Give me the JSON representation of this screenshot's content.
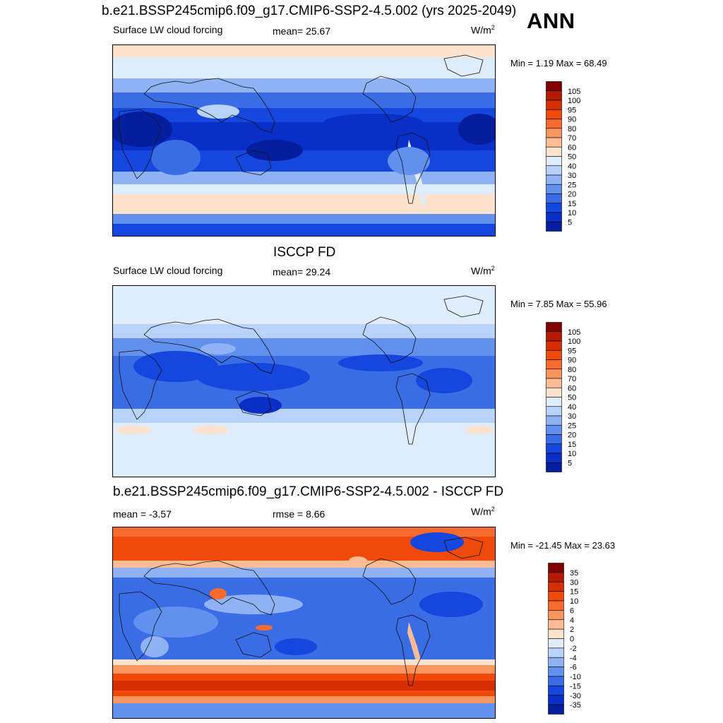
{
  "season": "ANN",
  "units_main": "W/m",
  "units_sup": "2",
  "panels": [
    {
      "title": "b.e21.BSSP245cmip6.f09_g17.CMIP6-SSP2-4.5.002 (yrs 2025-2049)",
      "left_text": "Surface LW cloud forcing",
      "center_text": "mean=  25.67",
      "min_max": "Min =   1.19 Max =  68.49",
      "levels": [
        "105",
        "100",
        "95",
        "90",
        "80",
        "70",
        "60",
        "50",
        "40",
        "30",
        "25",
        "20",
        "15",
        "10",
        "5"
      ],
      "colors": [
        "#800000",
        "#b31a00",
        "#d52e00",
        "#f04a0a",
        "#f86a2e",
        "#fb9560",
        "#fdbc95",
        "#fde3cd",
        "#dfecfc",
        "#b8d2fa",
        "#8fb2f4",
        "#6190ee",
        "#3a6ce6",
        "#1546dd",
        "#0a2fc7",
        "#041e9e"
      ]
    },
    {
      "title": "ISCCP FD",
      "left_text": "Surface LW cloud forcing",
      "center_text": "mean=  29.24",
      "min_max": "Min =   7.85 Max =  55.96",
      "levels": [
        "105",
        "100",
        "95",
        "90",
        "80",
        "70",
        "60",
        "50",
        "40",
        "30",
        "25",
        "20",
        "15",
        "10",
        "5"
      ],
      "colors": [
        "#800000",
        "#b31a00",
        "#d52e00",
        "#f04a0a",
        "#f86a2e",
        "#fb9560",
        "#fdbc95",
        "#fde3cd",
        "#dfecfc",
        "#b8d2fa",
        "#8fb2f4",
        "#6190ee",
        "#3a6ce6",
        "#1546dd",
        "#0a2fc7",
        "#041e9e"
      ]
    },
    {
      "title": "b.e21.BSSP245cmip6.f09_g17.CMIP6-SSP2-4.5.002 - ISCCP FD",
      "left_text": "mean =  -3.57",
      "center_text": "rmse =   8.66",
      "min_max": "Min = -21.45 Max =  23.63",
      "levels": [
        "35",
        "30",
        "15",
        "10",
        "6",
        "4",
        "2",
        "0",
        "-2",
        "-4",
        "-6",
        "-10",
        "-15",
        "-30",
        "-35"
      ],
      "colors": [
        "#800000",
        "#b31a00",
        "#d52e00",
        "#f04a0a",
        "#f86a2e",
        "#fb9560",
        "#fdbc95",
        "#fde3cd",
        "#dfecfc",
        "#b8d2fa",
        "#8fb2f4",
        "#6190ee",
        "#3a6ce6",
        "#1546dd",
        "#0a2fc7",
        "#041e9e"
      ]
    }
  ]
}
